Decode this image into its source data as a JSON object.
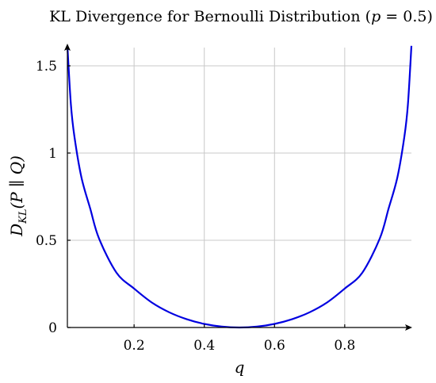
{
  "chart_data": {
    "type": "line",
    "title_prefix": "KL Divergence for Bernoulli Distribution (",
    "title_var": "p",
    "title_eq": " = 0.5)",
    "xlabel": "q",
    "ylabel_parts": {
      "d": "D",
      "sub": "KL",
      "open": "(P",
      "sep": " ∥ ",
      "close": "Q)"
    },
    "xlim": [
      0.01,
      0.99
    ],
    "ylim": [
      0,
      1.6
    ],
    "x_ticks": [
      "0.2",
      "0.4",
      "0.6",
      "0.8"
    ],
    "y_ticks": [
      "0",
      "0.5",
      "1",
      "1.5"
    ],
    "grid": true,
    "p": 0.5,
    "series": [
      {
        "color": "#0000e0",
        "x": [
          0.01,
          0.02,
          0.03,
          0.05,
          0.075,
          0.1,
          0.15,
          0.2,
          0.25,
          0.3,
          0.35,
          0.4,
          0.45,
          0.5,
          0.55,
          0.6,
          0.65,
          0.7,
          0.75,
          0.8,
          0.85,
          0.9,
          0.925,
          0.95,
          0.97,
          0.98,
          0.99
        ],
        "y": [
          1.6144,
          1.2788,
          1.0951,
          0.8607,
          0.6819,
          0.5108,
          0.3136,
          0.2231,
          0.1438,
          0.0872,
          0.0474,
          0.0204,
          0.005,
          0.0,
          0.005,
          0.0204,
          0.0474,
          0.0872,
          0.1438,
          0.2231,
          0.3136,
          0.5108,
          0.6819,
          0.8607,
          1.0951,
          1.2788,
          1.6144
        ]
      }
    ]
  }
}
